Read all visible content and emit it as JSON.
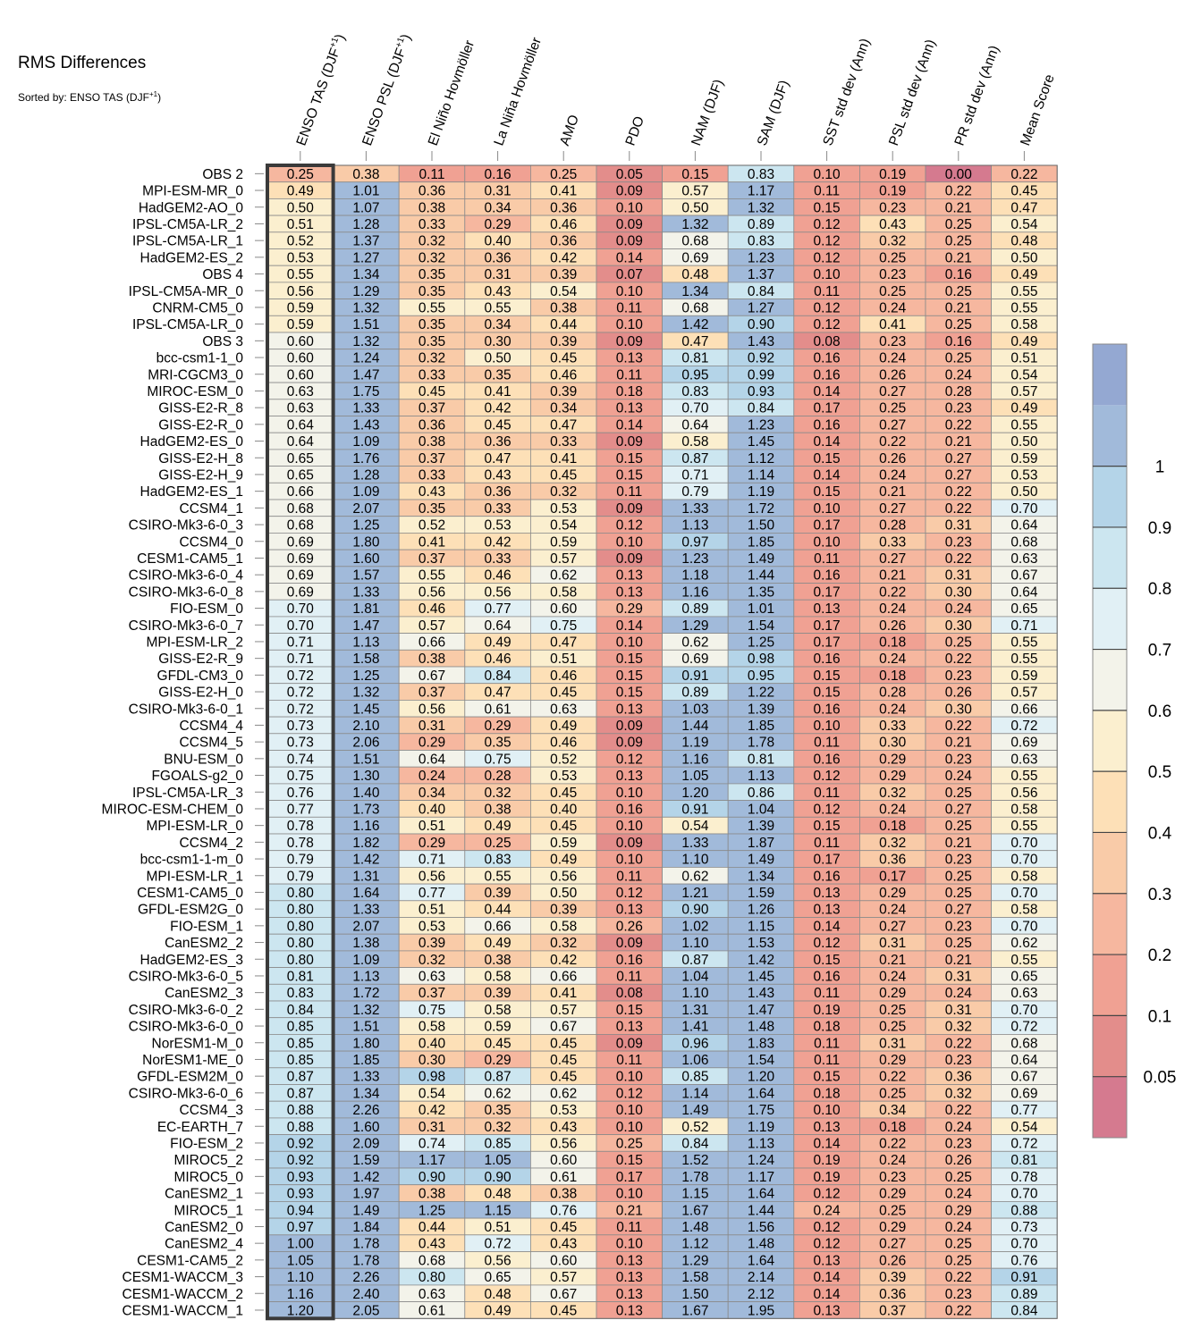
{
  "title": "RMS Differences",
  "subtitle": "Sorted by: ENSO TAS (DJF",
  "subtitle_sup": "+1",
  "subtitle_end": ")",
  "chart_data": {
    "type": "heatmap",
    "columns": [
      {
        "label": "ENSO TAS (DJF",
        "sup": "+1",
        "tail": ")"
      },
      {
        "label": "ENSO PSL (DJF",
        "sup": "+1",
        "tail": ")"
      },
      {
        "label": "El Niño Hovmöller"
      },
      {
        "label": "La Niña Hovmöller"
      },
      {
        "label": "AMO"
      },
      {
        "label": "PDO"
      },
      {
        "label": "NAM (DJF)"
      },
      {
        "label": "SAM (DJF)"
      },
      {
        "label": "SST std dev (Ann)"
      },
      {
        "label": "PSL std dev (Ann)"
      },
      {
        "label": "PR std dev (Ann)"
      },
      {
        "label": "Mean Score"
      }
    ],
    "highlighted_column": 0,
    "rows": [
      "OBS 2",
      "MPI-ESM-MR_0",
      "HadGEM2-AO_0",
      "IPSL-CM5A-LR_2",
      "IPSL-CM5A-LR_1",
      "HadGEM2-ES_2",
      "OBS 4",
      "IPSL-CM5A-MR_0",
      "CNRM-CM5_0",
      "IPSL-CM5A-LR_0",
      "OBS 3",
      "bcc-csm1-1_0",
      "MRI-CGCM3_0",
      "MIROC-ESM_0",
      "GISS-E2-R_8",
      "GISS-E2-R_0",
      "HadGEM2-ES_0",
      "GISS-E2-H_8",
      "GISS-E2-H_9",
      "HadGEM2-ES_1",
      "CCSM4_1",
      "CSIRO-Mk3-6-0_3",
      "CCSM4_0",
      "CESM1-CAM5_1",
      "CSIRO-Mk3-6-0_4",
      "CSIRO-Mk3-6-0_8",
      "FIO-ESM_0",
      "CSIRO-Mk3-6-0_7",
      "MPI-ESM-LR_2",
      "GISS-E2-R_9",
      "GFDL-CM3_0",
      "GISS-E2-H_0",
      "CSIRO-Mk3-6-0_1",
      "CCSM4_4",
      "CCSM4_5",
      "BNU-ESM_0",
      "FGOALS-g2_0",
      "IPSL-CM5A-LR_3",
      "MIROC-ESM-CHEM_0",
      "MPI-ESM-LR_0",
      "CCSM4_2",
      "bcc-csm1-1-m_0",
      "MPI-ESM-LR_1",
      "CESM1-CAM5_0",
      "GFDL-ESM2G_0",
      "FIO-ESM_1",
      "CanESM2_2",
      "HadGEM2-ES_3",
      "CSIRO-Mk3-6-0_5",
      "CanESM2_3",
      "CSIRO-Mk3-6-0_2",
      "CSIRO-Mk3-6-0_0",
      "NorESM1-M_0",
      "NorESM1-ME_0",
      "GFDL-ESM2M_0",
      "CSIRO-Mk3-6-0_6",
      "CCSM4_3",
      "EC-EARTH_7",
      "FIO-ESM_2",
      "MIROC5_2",
      "MIROC5_0",
      "CanESM2_1",
      "MIROC5_1",
      "CanESM2_0",
      "CanESM2_4",
      "CESM1-CAM5_2",
      "CESM1-WACCM_3",
      "CESM1-WACCM_2",
      "CESM1-WACCM_1"
    ],
    "values": [
      [
        0.25,
        0.38,
        0.11,
        0.16,
        0.25,
        0.05,
        0.15,
        0.83,
        0.1,
        0.19,
        0.0,
        0.22
      ],
      [
        0.49,
        1.01,
        0.36,
        0.31,
        0.41,
        0.09,
        0.57,
        1.17,
        0.11,
        0.19,
        0.22,
        0.45
      ],
      [
        0.5,
        1.07,
        0.38,
        0.34,
        0.36,
        0.1,
        0.5,
        1.32,
        0.15,
        0.23,
        0.21,
        0.47
      ],
      [
        0.51,
        1.28,
        0.33,
        0.29,
        0.46,
        0.09,
        1.32,
        0.89,
        0.12,
        0.43,
        0.25,
        0.54
      ],
      [
        0.52,
        1.37,
        0.32,
        0.4,
        0.36,
        0.09,
        0.68,
        0.83,
        0.12,
        0.32,
        0.25,
        0.48
      ],
      [
        0.53,
        1.27,
        0.32,
        0.36,
        0.42,
        0.14,
        0.69,
        1.23,
        0.12,
        0.25,
        0.21,
        0.5
      ],
      [
        0.55,
        1.34,
        0.35,
        0.31,
        0.39,
        0.07,
        0.48,
        1.37,
        0.1,
        0.23,
        0.16,
        0.49
      ],
      [
        0.56,
        1.29,
        0.35,
        0.43,
        0.54,
        0.1,
        1.34,
        0.84,
        0.11,
        0.25,
        0.25,
        0.55
      ],
      [
        0.59,
        1.32,
        0.55,
        0.55,
        0.38,
        0.11,
        0.68,
        1.27,
        0.12,
        0.24,
        0.21,
        0.55
      ],
      [
        0.59,
        1.51,
        0.35,
        0.34,
        0.44,
        0.1,
        1.42,
        0.9,
        0.12,
        0.41,
        0.25,
        0.58
      ],
      [
        0.6,
        1.32,
        0.35,
        0.3,
        0.39,
        0.09,
        0.47,
        1.43,
        0.08,
        0.23,
        0.16,
        0.49
      ],
      [
        0.6,
        1.24,
        0.32,
        0.5,
        0.45,
        0.13,
        0.81,
        0.92,
        0.16,
        0.24,
        0.25,
        0.51
      ],
      [
        0.6,
        1.47,
        0.33,
        0.35,
        0.46,
        0.11,
        0.95,
        0.99,
        0.16,
        0.26,
        0.24,
        0.54
      ],
      [
        0.63,
        1.75,
        0.45,
        0.41,
        0.39,
        0.18,
        0.83,
        0.93,
        0.14,
        0.27,
        0.28,
        0.57
      ],
      [
        0.63,
        1.33,
        0.37,
        0.42,
        0.34,
        0.13,
        0.7,
        0.84,
        0.17,
        0.25,
        0.23,
        0.49
      ],
      [
        0.64,
        1.43,
        0.36,
        0.45,
        0.47,
        0.14,
        0.64,
        1.23,
        0.16,
        0.27,
        0.22,
        0.55
      ],
      [
        0.64,
        1.09,
        0.38,
        0.36,
        0.33,
        0.09,
        0.58,
        1.45,
        0.14,
        0.22,
        0.21,
        0.5
      ],
      [
        0.65,
        1.76,
        0.37,
        0.47,
        0.41,
        0.15,
        0.87,
        1.12,
        0.15,
        0.26,
        0.27,
        0.59
      ],
      [
        0.65,
        1.28,
        0.33,
        0.43,
        0.45,
        0.15,
        0.71,
        1.14,
        0.14,
        0.24,
        0.27,
        0.53
      ],
      [
        0.66,
        1.09,
        0.43,
        0.36,
        0.32,
        0.11,
        0.79,
        1.19,
        0.15,
        0.21,
        0.22,
        0.5
      ],
      [
        0.68,
        2.07,
        0.35,
        0.33,
        0.53,
        0.09,
        1.33,
        1.72,
        0.1,
        0.27,
        0.22,
        0.7
      ],
      [
        0.68,
        1.25,
        0.52,
        0.53,
        0.54,
        0.12,
        1.13,
        1.5,
        0.17,
        0.28,
        0.31,
        0.64
      ],
      [
        0.69,
        1.8,
        0.41,
        0.42,
        0.59,
        0.1,
        0.97,
        1.85,
        0.1,
        0.33,
        0.23,
        0.68
      ],
      [
        0.69,
        1.6,
        0.37,
        0.33,
        0.57,
        0.09,
        1.23,
        1.49,
        0.11,
        0.27,
        0.22,
        0.63
      ],
      [
        0.69,
        1.57,
        0.55,
        0.46,
        0.62,
        0.13,
        1.18,
        1.44,
        0.16,
        0.21,
        0.31,
        0.67
      ],
      [
        0.69,
        1.33,
        0.56,
        0.56,
        0.58,
        0.13,
        1.16,
        1.35,
        0.17,
        0.22,
        0.3,
        0.64
      ],
      [
        0.7,
        1.81,
        0.46,
        0.77,
        0.6,
        0.29,
        0.89,
        1.01,
        0.13,
        0.24,
        0.24,
        0.65
      ],
      [
        0.7,
        1.47,
        0.57,
        0.64,
        0.75,
        0.14,
        1.29,
        1.54,
        0.17,
        0.26,
        0.3,
        0.71
      ],
      [
        0.71,
        1.13,
        0.66,
        0.49,
        0.47,
        0.1,
        0.62,
        1.25,
        0.17,
        0.18,
        0.25,
        0.55
      ],
      [
        0.71,
        1.58,
        0.38,
        0.46,
        0.51,
        0.15,
        0.69,
        0.98,
        0.16,
        0.24,
        0.22,
        0.55
      ],
      [
        0.72,
        1.25,
        0.67,
        0.84,
        0.46,
        0.15,
        0.91,
        0.95,
        0.15,
        0.18,
        0.23,
        0.59
      ],
      [
        0.72,
        1.32,
        0.37,
        0.47,
        0.45,
        0.15,
        0.89,
        1.22,
        0.15,
        0.28,
        0.26,
        0.57
      ],
      [
        0.72,
        1.45,
        0.56,
        0.61,
        0.63,
        0.13,
        1.03,
        1.39,
        0.16,
        0.24,
        0.3,
        0.66
      ],
      [
        0.73,
        2.1,
        0.31,
        0.29,
        0.49,
        0.09,
        1.44,
        1.85,
        0.1,
        0.33,
        0.22,
        0.72
      ],
      [
        0.73,
        2.06,
        0.29,
        0.35,
        0.46,
        0.09,
        1.19,
        1.78,
        0.11,
        0.3,
        0.21,
        0.69
      ],
      [
        0.74,
        1.51,
        0.64,
        0.75,
        0.52,
        0.12,
        1.16,
        0.81,
        0.16,
        0.29,
        0.23,
        0.63
      ],
      [
        0.75,
        1.3,
        0.24,
        0.28,
        0.53,
        0.13,
        1.05,
        1.13,
        0.12,
        0.29,
        0.24,
        0.55
      ],
      [
        0.76,
        1.4,
        0.34,
        0.32,
        0.45,
        0.1,
        1.2,
        0.86,
        0.11,
        0.32,
        0.25,
        0.56
      ],
      [
        0.77,
        1.73,
        0.4,
        0.38,
        0.4,
        0.16,
        0.91,
        1.04,
        0.12,
        0.24,
        0.27,
        0.58
      ],
      [
        0.78,
        1.16,
        0.51,
        0.49,
        0.45,
        0.1,
        0.54,
        1.39,
        0.15,
        0.18,
        0.25,
        0.55
      ],
      [
        0.78,
        1.82,
        0.29,
        0.25,
        0.59,
        0.09,
        1.33,
        1.87,
        0.11,
        0.32,
        0.21,
        0.7
      ],
      [
        0.79,
        1.42,
        0.71,
        0.83,
        0.49,
        0.1,
        1.1,
        1.49,
        0.17,
        0.36,
        0.23,
        0.7
      ],
      [
        0.79,
        1.31,
        0.56,
        0.55,
        0.56,
        0.11,
        0.62,
        1.34,
        0.16,
        0.17,
        0.25,
        0.58
      ],
      [
        0.8,
        1.64,
        0.77,
        0.39,
        0.5,
        0.12,
        1.21,
        1.59,
        0.13,
        0.29,
        0.25,
        0.7
      ],
      [
        0.8,
        1.33,
        0.51,
        0.44,
        0.39,
        0.13,
        0.9,
        1.26,
        0.13,
        0.24,
        0.27,
        0.58
      ],
      [
        0.8,
        2.07,
        0.53,
        0.66,
        0.58,
        0.26,
        1.02,
        1.15,
        0.14,
        0.27,
        0.23,
        0.7
      ],
      [
        0.8,
        1.38,
        0.39,
        0.49,
        0.32,
        0.09,
        1.1,
        1.53,
        0.12,
        0.31,
        0.25,
        0.62
      ],
      [
        0.8,
        1.09,
        0.32,
        0.38,
        0.42,
        0.16,
        0.87,
        1.42,
        0.15,
        0.21,
        0.21,
        0.55
      ],
      [
        0.81,
        1.13,
        0.63,
        0.58,
        0.66,
        0.11,
        1.04,
        1.45,
        0.16,
        0.24,
        0.31,
        0.65
      ],
      [
        0.83,
        1.72,
        0.37,
        0.39,
        0.41,
        0.08,
        1.1,
        1.43,
        0.11,
        0.29,
        0.24,
        0.63
      ],
      [
        0.84,
        1.32,
        0.75,
        0.58,
        0.57,
        0.15,
        1.31,
        1.47,
        0.19,
        0.25,
        0.31,
        0.7
      ],
      [
        0.85,
        1.51,
        0.58,
        0.59,
        0.67,
        0.13,
        1.41,
        1.48,
        0.18,
        0.25,
        0.32,
        0.72
      ],
      [
        0.85,
        1.8,
        0.4,
        0.45,
        0.45,
        0.09,
        0.96,
        1.83,
        0.11,
        0.31,
        0.22,
        0.68
      ],
      [
        0.85,
        1.85,
        0.3,
        0.29,
        0.45,
        0.11,
        1.06,
        1.54,
        0.11,
        0.29,
        0.23,
        0.64
      ],
      [
        0.87,
        1.33,
        0.98,
        0.87,
        0.45,
        0.1,
        0.85,
        1.2,
        0.15,
        0.22,
        0.36,
        0.67
      ],
      [
        0.87,
        1.34,
        0.54,
        0.62,
        0.62,
        0.12,
        1.14,
        1.64,
        0.18,
        0.25,
        0.32,
        0.69
      ],
      [
        0.88,
        2.26,
        0.42,
        0.35,
        0.53,
        0.1,
        1.49,
        1.75,
        0.1,
        0.34,
        0.22,
        0.77
      ],
      [
        0.88,
        1.6,
        0.31,
        0.32,
        0.43,
        0.1,
        0.52,
        1.19,
        0.13,
        0.18,
        0.24,
        0.54
      ],
      [
        0.92,
        2.09,
        0.74,
        0.85,
        0.56,
        0.25,
        0.84,
        1.13,
        0.14,
        0.22,
        0.23,
        0.72
      ],
      [
        0.92,
        1.59,
        1.17,
        1.05,
        0.6,
        0.15,
        1.52,
        1.24,
        0.19,
        0.24,
        0.26,
        0.81
      ],
      [
        0.93,
        1.42,
        0.9,
        0.9,
        0.61,
        0.17,
        1.78,
        1.17,
        0.19,
        0.23,
        0.25,
        0.78
      ],
      [
        0.93,
        1.97,
        0.38,
        0.48,
        0.38,
        0.1,
        1.15,
        1.64,
        0.12,
        0.29,
        0.24,
        0.7
      ],
      [
        0.94,
        1.49,
        1.25,
        1.15,
        0.76,
        0.21,
        1.67,
        1.44,
        0.24,
        0.25,
        0.29,
        0.88
      ],
      [
        0.97,
        1.84,
        0.44,
        0.51,
        0.45,
        0.11,
        1.48,
        1.56,
        0.12,
        0.29,
        0.24,
        0.73
      ],
      [
        1.0,
        1.78,
        0.43,
        0.72,
        0.43,
        0.1,
        1.12,
        1.48,
        0.12,
        0.27,
        0.25,
        0.7
      ],
      [
        1.05,
        1.78,
        0.68,
        0.56,
        0.6,
        0.13,
        1.29,
        1.64,
        0.13,
        0.26,
        0.25,
        0.76
      ],
      [
        1.1,
        2.26,
        0.8,
        0.65,
        0.57,
        0.13,
        1.58,
        2.14,
        0.14,
        0.39,
        0.22,
        0.91
      ],
      [
        1.16,
        2.4,
        0.63,
        0.48,
        0.67,
        0.13,
        1.5,
        2.12,
        0.14,
        0.36,
        0.23,
        0.89
      ],
      [
        1.2,
        2.05,
        0.61,
        0.49,
        0.45,
        0.13,
        1.67,
        1.95,
        0.13,
        0.37,
        0.22,
        0.84
      ]
    ],
    "colorbar": {
      "levels": [
        0.05,
        0.1,
        0.2,
        0.3,
        0.4,
        0.5,
        0.6,
        0.7,
        0.8,
        0.9,
        1
      ],
      "tick_labels": [
        "0.05",
        "0.1",
        "0.2",
        "0.3",
        "0.4",
        "0.5",
        "0.6",
        "0.7",
        "0.8",
        "0.9",
        "1"
      ],
      "colors": [
        "#d57a8f",
        "#e38d8b",
        "#f0a193",
        "#f6b79f",
        "#f9cba8",
        "#fde0b7",
        "#fbefcf",
        "#f3f3ea",
        "#e1f0f5",
        "#cce6f0",
        "#b4d4e8",
        "#a1bada",
        "#94a8d2"
      ]
    }
  }
}
